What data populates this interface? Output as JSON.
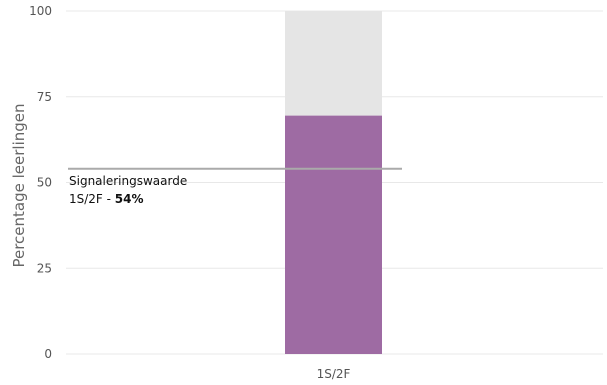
{
  "chart_data": {
    "type": "bar",
    "stacked_to_100": true,
    "categories": [
      "1S/2F"
    ],
    "values": [
      69.5
    ],
    "ylim": [
      0,
      100
    ],
    "yticks": [
      0,
      25,
      50,
      75,
      100
    ],
    "ytick_labels": [
      "0",
      "25",
      "50",
      "75",
      "100"
    ],
    "ylabel": "Percentage leerlingen",
    "xlabel": "",
    "grid": true,
    "colors": {
      "bar": "#9e6ba3",
      "remainder": "#e5e5e5",
      "threshold_line": "#aaaaaa",
      "grid": "#e8e8e8"
    },
    "threshold": {
      "value": 54,
      "label_line1": "Signaleringswaarde",
      "label_line2_prefix": "1S/2F - ",
      "label_line2_value": "54%"
    }
  }
}
